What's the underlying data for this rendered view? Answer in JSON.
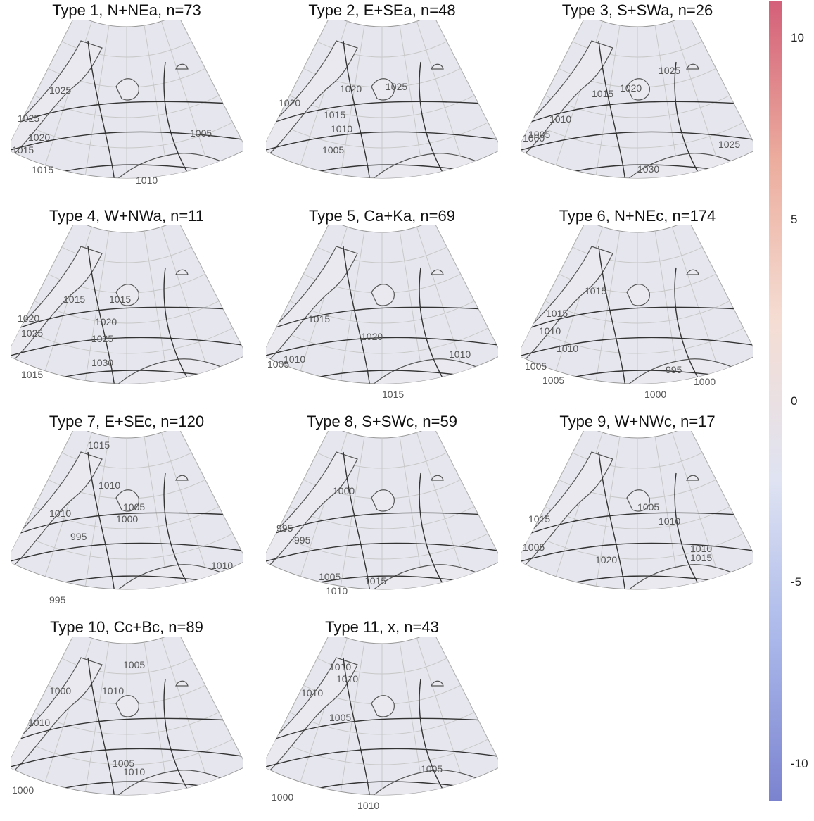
{
  "panels": [
    {
      "title": "Type 1, N+NEa, n=73",
      "isobar_labels": [
        "1025",
        "1025",
        "1020",
        "1015",
        "1015",
        "1005",
        "1010"
      ]
    },
    {
      "title": "Type 2, E+SEa, n=48",
      "isobar_labels": [
        "1020",
        "1025",
        "1020",
        "1015",
        "1010",
        "1005"
      ]
    },
    {
      "title": "Type 3, S+SWa, n=26",
      "isobar_labels": [
        "1025",
        "1015",
        "1020",
        "1010",
        "1005",
        "1000",
        "1025",
        "1030"
      ]
    },
    {
      "title": "Type 4, W+NWa, n=11",
      "isobar_labels": [
        "1015",
        "1015",
        "1020",
        "1020",
        "1025",
        "1025",
        "1030",
        "1015"
      ]
    },
    {
      "title": "Type 5, Ca+Ka, n=69",
      "isobar_labels": [
        "1015",
        "1020",
        "1005",
        "1010",
        "1010",
        "1015"
      ]
    },
    {
      "title": "Type 6, N+NEc, n=174",
      "isobar_labels": [
        "1015",
        "1015",
        "1010",
        "1010",
        "1005",
        "1005",
        "995",
        "1000",
        "1000"
      ]
    },
    {
      "title": "Type 7, E+SEc, n=120",
      "isobar_labels": [
        "1015",
        "1010",
        "1010",
        "1005",
        "1000",
        "995",
        "1010",
        "995"
      ]
    },
    {
      "title": "Type 8, S+SWc, n=59",
      "isobar_labels": [
        "1000",
        "995",
        "995",
        "1005",
        "1010",
        "1015"
      ]
    },
    {
      "title": "Type 9, W+NWc, n=17",
      "isobar_labels": [
        "1015",
        "1005",
        "1010",
        "1005",
        "1010",
        "1020",
        "1015"
      ]
    },
    {
      "title": "Type 10, Cc+Bc, n=89",
      "isobar_labels": [
        "1005",
        "1000",
        "1010",
        "1010",
        "1005",
        "1000",
        "1010"
      ]
    },
    {
      "title": "Type 11, x, n=43",
      "isobar_labels": [
        "1010",
        "1010",
        "1010",
        "1005",
        "1005",
        "1000",
        "1010"
      ]
    }
  ],
  "colorbar": {
    "ticks": [
      10,
      5,
      0,
      -5,
      -10
    ],
    "tick_labels": [
      "10",
      "5",
      "0",
      "-5",
      "-10"
    ],
    "range": [
      -11,
      11
    ],
    "colors": [
      "#7b83cf",
      "#a9b7ea",
      "#dfe3f2",
      "#f5ddd3",
      "#ecad9e",
      "#d46079"
    ]
  },
  "colors": {
    "coast": "#555555",
    "isobar": "#333333",
    "grid": "#c8c8c8"
  }
}
